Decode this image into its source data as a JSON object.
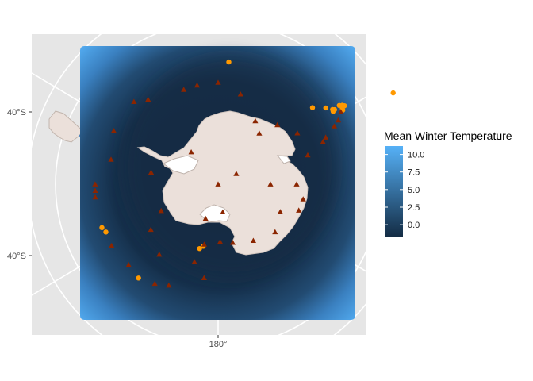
{
  "chart_data": {
    "type": "map",
    "title": "",
    "axes": {
      "y_tick_labels": [
        "40°S",
        "40°S"
      ],
      "x_tick_labels": [
        "180°"
      ]
    },
    "legend": {
      "title": "Mean Winter Temperature",
      "position": "right",
      "range": [
        -1.8,
        11.2
      ],
      "ticks": [
        10.0,
        7.5,
        5.0,
        2.5,
        0.0
      ],
      "tick_labels": [
        "10.0",
        "7.5",
        "5.0",
        "2.5",
        "0.0"
      ],
      "low_color": "#132B43",
      "high_color": "#56B1F7"
    },
    "grid": true,
    "colors": {
      "panel": "#e6e6e6",
      "grid": "#ffffff",
      "land": "#ebe0da",
      "land_border": "#c2b5ad",
      "stations_circle": "#ff9900",
      "stations_triangle": "#8b2500"
    },
    "series": [
      {
        "marker": "circle",
        "color": "#ff9900",
        "points": [
          {
            "lon": -62.5,
            "lat": -52.3
          },
          {
            "lon": -58.2,
            "lat": -61.6
          },
          {
            "lon": -58.6,
            "lat": -62.2
          },
          {
            "lon": -59.3,
            "lat": -62.3
          },
          {
            "lon": -57.6,
            "lat": -61.9
          },
          {
            "lon": -57.0,
            "lat": -62.4
          },
          {
            "lon": -57.4,
            "lat": -63.6
          },
          {
            "lon": -56.9,
            "lat": -63.9
          },
          {
            "lon": -57.7,
            "lat": -64.0
          },
          {
            "lon": -54.7,
            "lat": -64.8
          },
          {
            "lon": -51.0,
            "lat": -66.8
          },
          {
            "lon": -5.0,
            "lat": -66.6
          },
          {
            "lon": 110.5,
            "lat": -66.3
          },
          {
            "lon": 113.1,
            "lat": -66.7
          },
          {
            "lon": 163.9,
            "lat": -77.2
          },
          {
            "lon": 166.6,
            "lat": -77.8
          },
          {
            "lon": 139.7,
            "lat": -66.5
          }
        ]
      },
      {
        "marker": "triangle",
        "color": "#8b2500",
        "points": [
          {
            "lon": -59.5,
            "lat": -62.8
          },
          {
            "lon": -62.0,
            "lat": -64.0
          },
          {
            "lon": -63.5,
            "lat": -65.2
          },
          {
            "lon": -66.5,
            "lat": -67.6
          },
          {
            "lon": -68.0,
            "lat": -68.4
          },
          {
            "lon": -57.2,
            "lat": -72.0
          },
          {
            "lon": -45.0,
            "lat": -74.0
          },
          {
            "lon": -39.0,
            "lat": -77.5
          },
          {
            "lon": -30.5,
            "lat": -76.0
          },
          {
            "lon": -14.0,
            "lat": -72.3
          },
          {
            "lon": 0.0,
            "lat": -70.6
          },
          {
            "lon": 12.0,
            "lat": -70.7
          },
          {
            "lon": 20.0,
            "lat": -70.8
          },
          {
            "lon": 39.6,
            "lat": -69.0
          },
          {
            "lon": 45.6,
            "lat": -67.5
          },
          {
            "lon": 62.9,
            "lat": -67.6
          },
          {
            "lon": 77.0,
            "lat": -69.0
          },
          {
            "lon": 90.0,
            "lat": -66.5
          },
          {
            "lon": 93.0,
            "lat": -66.5
          },
          {
            "lon": 96.0,
            "lat": -66.4
          },
          {
            "lon": 120.0,
            "lat": -66.5
          },
          {
            "lon": 124.0,
            "lat": -74.5
          },
          {
            "lon": 132.0,
            "lat": -67.0
          },
          {
            "lon": 147.5,
            "lat": -67.5
          },
          {
            "lon": 154.0,
            "lat": -68.5
          },
          {
            "lon": 163.0,
            "lat": -74.5
          },
          {
            "lon": 167.0,
            "lat": -78.2
          },
          {
            "lon": 171.5,
            "lat": -71.9
          },
          {
            "lon": -178.0,
            "lat": -79.0
          },
          {
            "lon": -166.0,
            "lat": -78.5
          },
          {
            "lon": -170.5,
            "lat": -84.6
          },
          {
            "lon": -148.0,
            "lat": -77.3
          },
          {
            "lon": -130.0,
            "lat": -75.8
          },
          {
            "lon": -114.0,
            "lat": -77.0
          },
          {
            "lon": -108.0,
            "lat": -73.8
          },
          {
            "lon": -100.0,
            "lat": -73.5
          },
          {
            "lon": -90.0,
            "lat": -75.0
          },
          {
            "lon": -90.0,
            "lat": -80.0
          },
          {
            "lon": -72.0,
            "lat": -72.0
          },
          {
            "lon": 0.0,
            "lat": -90.0
          },
          {
            "lon": 40.0,
            "lat": -82.0
          },
          {
            "lon": 115.0,
            "lat": -78.0
          },
          {
            "lon": 160.0,
            "lat": -83.0
          },
          {
            "lon": -60.0,
            "lat": -86.0
          },
          {
            "lon": 80.0,
            "lat": -77.0
          },
          {
            "lon": 140.0,
            "lat": -72.5
          }
        ]
      }
    ]
  }
}
